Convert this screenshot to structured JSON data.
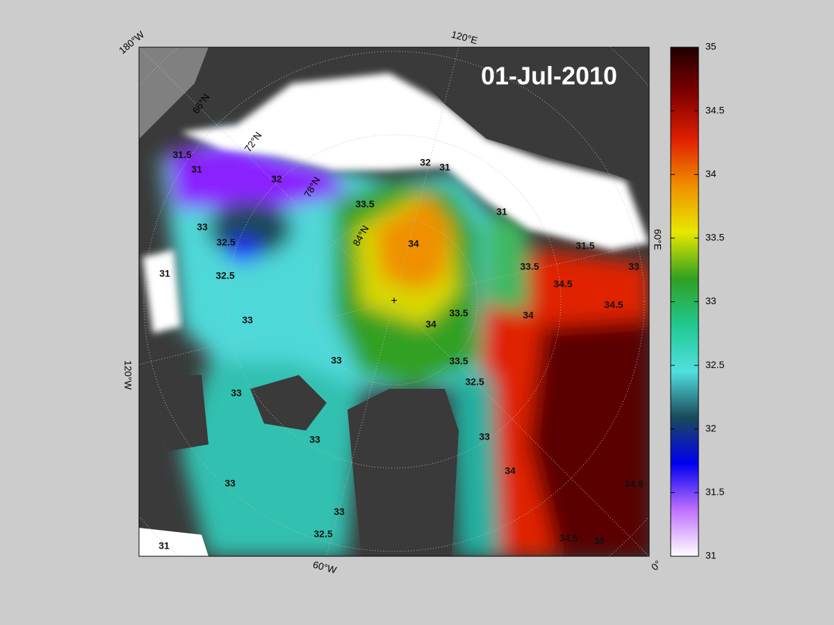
{
  "map": {
    "date_label": "01-Jul-2010",
    "longitude_labels": [
      "180°W",
      "120°E",
      "60°E",
      "0°",
      "60°W",
      "120°W"
    ],
    "latitude_labels": [
      "66°N",
      "72°N",
      "78°N",
      "84°N"
    ],
    "contour_labels": [
      31.5,
      31,
      32,
      33.5,
      32,
      31,
      33,
      32.5,
      32.5,
      31,
      33,
      34,
      34,
      33.5,
      33,
      33.5,
      34.5,
      34.5,
      34,
      33.5,
      31,
      31.5,
      33,
      33,
      33,
      33,
      34,
      34.5,
      34.5,
      33,
      32.5,
      31,
      33,
      35,
      32.5
    ]
  },
  "colorbar": {
    "lim": [
      31,
      35
    ],
    "ticks": [
      31,
      31.5,
      32,
      32.5,
      33,
      33.5,
      34,
      34.5,
      35
    ],
    "colors": [
      "#ffffff",
      "#c070ff",
      "#0000f0",
      "#1a4a5a",
      "#50e0e0",
      "#20c890",
      "#30a020",
      "#e8e800",
      "#f09000",
      "#e02000",
      "#800000",
      "#200000"
    ]
  }
}
